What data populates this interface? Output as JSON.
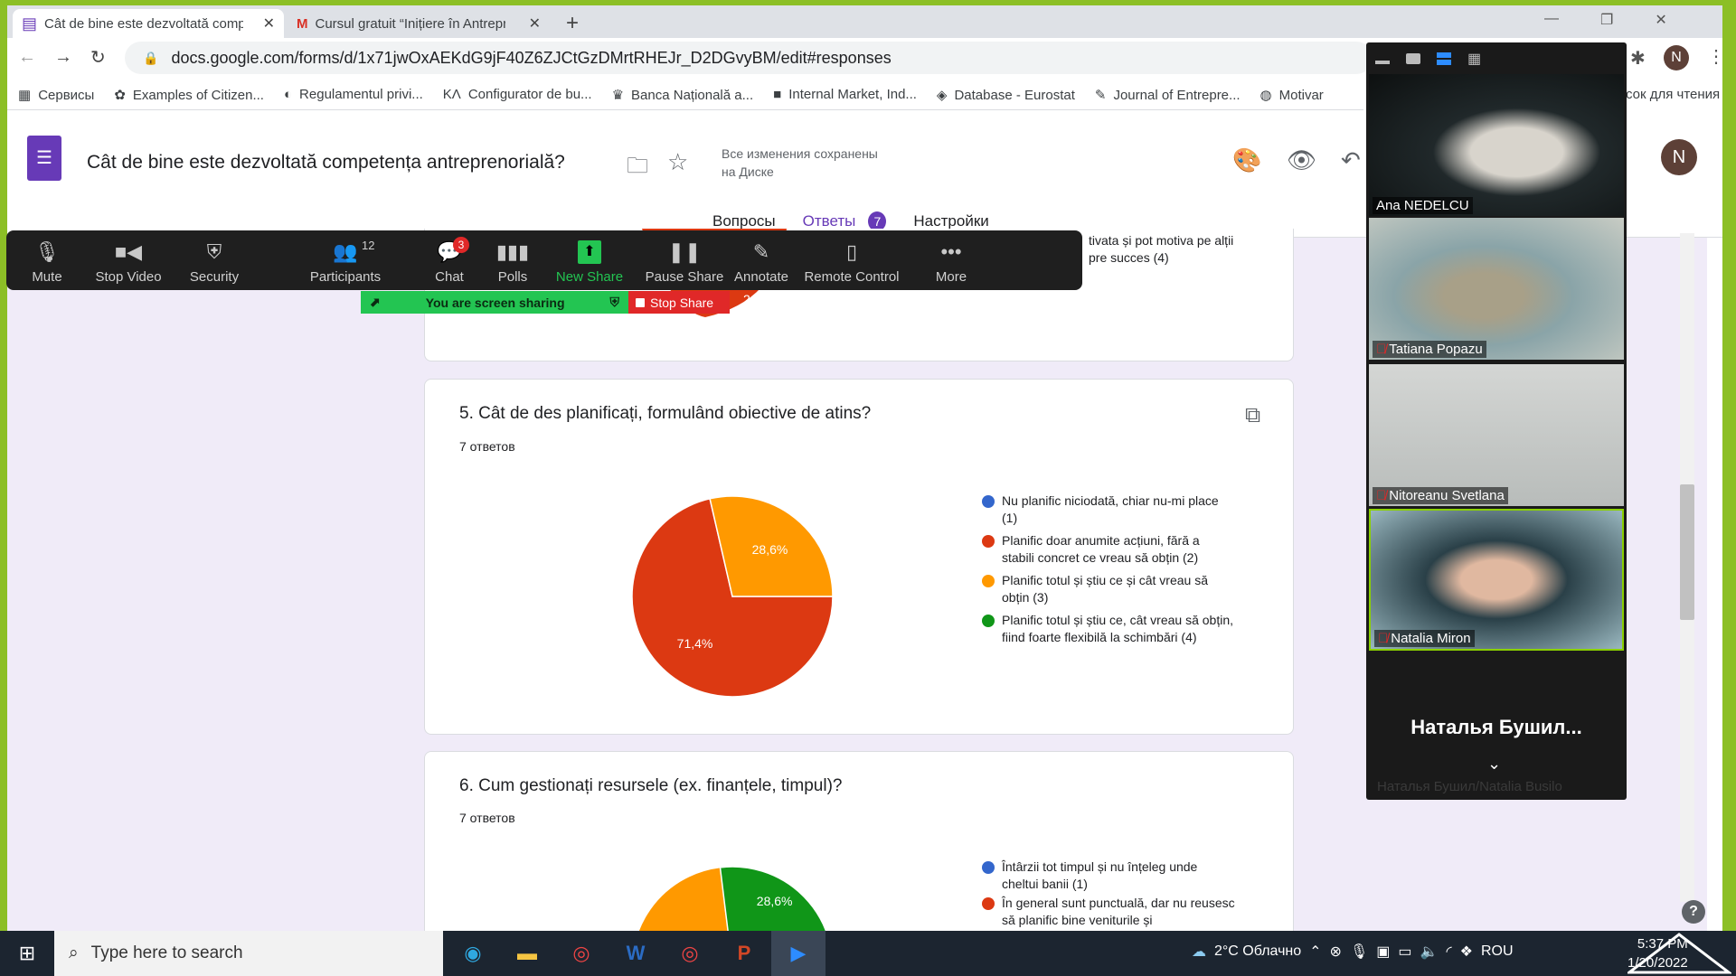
{
  "browser": {
    "tabs": [
      {
        "title": "Cât de bine este dezvoltată comp",
        "active": true
      },
      {
        "title": "Cursul gratuit “Inițiere în Antrepr",
        "active": false
      }
    ],
    "url": "docs.google.com/forms/d/1x71jwOxAEKdG9jF40Z6ZJCtGzDMrtRHEJr_D2DGvyBM/edit#responses",
    "bookmarks": [
      "Сервисы",
      "Examples of Citizen...",
      "Regulamentul privi...",
      "Configurator de bu...",
      "Banca Națională a...",
      "Internal Market, Ind...",
      "Database - Eurostat",
      "Journal of Entrepre...",
      "Motivar"
    ],
    "reading_list": "сок для чтения",
    "avatar": "N"
  },
  "form": {
    "title": "Cât de bine este dezvoltată competența antreprenorială?",
    "saved_line1": "Все изменения сохранены",
    "saved_line2": "на Диске",
    "avatar": "N",
    "tabs": [
      {
        "label": "Вопросы"
      },
      {
        "label": "Ответы",
        "badge": "7",
        "active": true
      },
      {
        "label": "Настройки"
      }
    ]
  },
  "prev_card": {
    "legend_tail_1": "tivata și pot motiva pe alții",
    "legend_tail_2": "pre succes (4)",
    "slice_label": "2,9%"
  },
  "questions": [
    {
      "title": "5. Cât de des planificați, formulând obiective de atins?",
      "count": "7 ответов",
      "legend": [
        {
          "label": "Nu planific niciodată, chiar nu-mi place (1)",
          "color": "#3366cc"
        },
        {
          "label": "Planific doar anumite acțiuni, fără a stabili concret ce vreau să obțin (2)",
          "color": "#dc3912"
        },
        {
          "label": "Planific totul și știu ce și cât vreau să obțin (3)",
          "color": "#ff9900"
        },
        {
          "label": "Planific totul și știu ce, cât vreau să obțin, fiind foarte flexibilă la schimbări (4)",
          "color": "#109618"
        }
      ]
    },
    {
      "title": "6. Cum gestionați resursele (ex. finanțele, timpul)?",
      "count": "7 ответов",
      "legend": [
        {
          "label": "Întârzii tot timpul și nu înțeleg unde cheltui banii (1)",
          "color": "#3366cc"
        },
        {
          "label": "În general sunt punctuală, dar nu reusesc să planific bine veniturile și",
          "color": "#dc3912"
        }
      ]
    }
  ],
  "chart_data": [
    {
      "type": "pie",
      "categories": [
        "Nu planific niciodată, chiar nu-mi place (1)",
        "Planific doar anumite acțiuni, fără a stabili concret ce vreau să obțin (2)",
        "Planific totul și știu ce și cât vreau să obțin (3)",
        "Planific totul și știu ce, cât vreau să obțin, fiind foarte flexibilă la schimbări (4)"
      ],
      "values": [
        0,
        71.4,
        28.6,
        0
      ],
      "labels": [
        "",
        "71,4%",
        "28,6%",
        ""
      ],
      "colors": [
        "#3366cc",
        "#dc3912",
        "#ff9900",
        "#109618"
      ]
    },
    {
      "type": "pie",
      "partial": true,
      "categories": [
        "(3)",
        "(4)"
      ],
      "values": [
        null,
        28.6
      ],
      "labels": [
        "",
        "28,6%"
      ],
      "colors": [
        "#ff9900",
        "#109618"
      ]
    }
  ],
  "zoom": {
    "toolbar": [
      {
        "label": "Mute",
        "icon": "microphone-icon"
      },
      {
        "label": "Stop Video",
        "icon": "video-camera-icon"
      },
      {
        "label": "Security",
        "icon": "shield-icon"
      },
      {
        "label": "Participants",
        "icon": "participants-icon",
        "count": "12"
      },
      {
        "label": "Chat",
        "icon": "chat-icon",
        "badge": "3"
      },
      {
        "label": "Polls",
        "icon": "polls-icon"
      },
      {
        "label": "New Share",
        "icon": "share-screen-icon"
      },
      {
        "label": "Pause Share",
        "icon": "pause-icon"
      },
      {
        "label": "Annotate",
        "icon": "pencil-icon"
      },
      {
        "label": "Remote Control",
        "icon": "mouse-icon"
      },
      {
        "label": "More",
        "icon": "more-icon"
      }
    ],
    "sharing": "You are screen sharing",
    "stop_share": "Stop Share",
    "participants": [
      {
        "name": "Ana NEDELCU",
        "muted": false
      },
      {
        "name": "Tatiana Popazu",
        "muted": true
      },
      {
        "name": "Nitoreanu Svetlana",
        "muted": true
      },
      {
        "name": "Natalia Miron",
        "muted": true
      }
    ],
    "big_name": "Наталья  Бушил...",
    "bottom_name": "Наталья Бушил/Natalia Busilo",
    "accent": "#2d8cff"
  },
  "taskbar": {
    "search_placeholder": "Type here to search",
    "weather": "2°C  Облачно",
    "lang": "ROU",
    "time": "5:37 PM",
    "date": "1/20/2022"
  }
}
